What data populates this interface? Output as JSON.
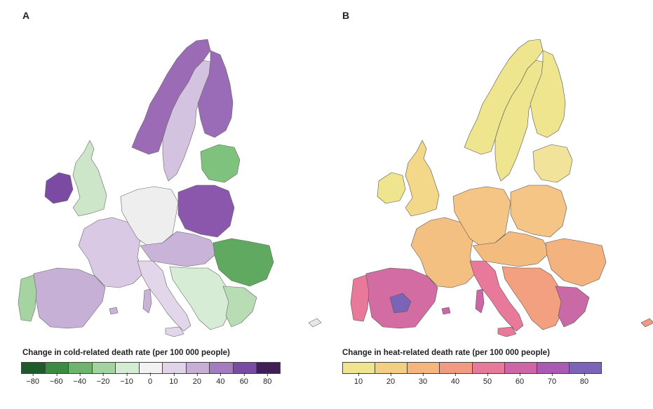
{
  "panel_a": {
    "letter": "A",
    "legend_title": "Change in cold-related death rate (per 100 000 people)",
    "legend_colors": [
      "#1f5a2a",
      "#3d8a45",
      "#6fb36e",
      "#a3d4a0",
      "#d3ecd2",
      "#f2f2f2",
      "#e1d3e8",
      "#c7aed6",
      "#a47cc0",
      "#7b4ba3",
      "#3f1f55"
    ],
    "legend_ticks": [
      "−80",
      "−60",
      "−40",
      "−20",
      "−10",
      "0",
      "10",
      "20",
      "40",
      "60",
      "80"
    ]
  },
  "panel_b": {
    "letter": "B",
    "legend_title": "Change in heat-related death rate (per 100 000 people)",
    "legend_colors": [
      "#efe58e",
      "#f3cf84",
      "#f4b67c",
      "#f29a82",
      "#e8799b",
      "#cf64a6",
      "#a85bb0",
      "#7b64b8"
    ],
    "legend_ticks": [
      "10",
      "20",
      "30",
      "40",
      "50",
      "60",
      "70",
      "80"
    ]
  }
}
